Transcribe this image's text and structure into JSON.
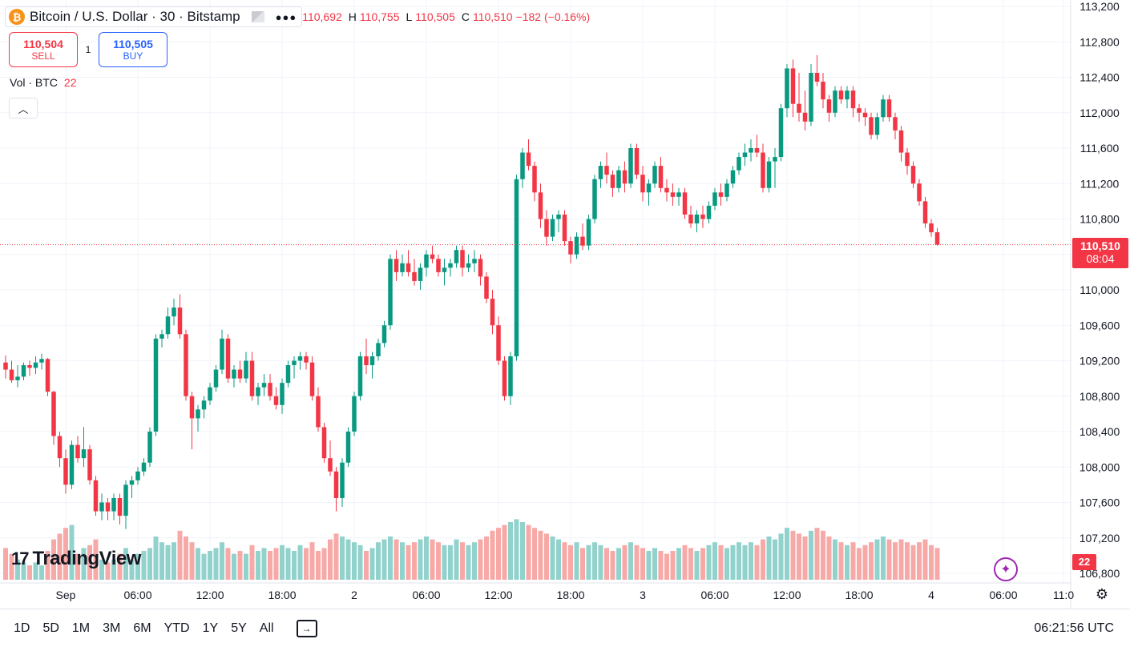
{
  "legend": {
    "symbol": "Bitcoin / U.S. Dollar · 30 · Bitstamp",
    "coin_glyph": "₿",
    "ohlc": {
      "o": "110,692",
      "h": "110,755",
      "l": "110,505",
      "c": "110,510",
      "change": "−182 (−0.16%)"
    },
    "labels": {
      "o": "",
      "h": "H",
      "l": "L",
      "c": "C"
    }
  },
  "trade": {
    "sell_price": "110,504",
    "sell_label": "SELL",
    "spread": "1",
    "buy_price": "110,505",
    "buy_label": "BUY"
  },
  "volume_legend": {
    "label": "Vol · BTC",
    "value": "22"
  },
  "logo": {
    "text": "TradingView"
  },
  "price_tag": {
    "price": "110,510",
    "countdown": "08:04"
  },
  "volume_tag": "22",
  "bottom_bar": {
    "ranges": [
      "1D",
      "5D",
      "1M",
      "3M",
      "6M",
      "YTD",
      "1Y",
      "5Y",
      "All"
    ],
    "clock": "06:21:56 UTC"
  },
  "colors": {
    "up": "#089981",
    "down": "#f23645",
    "vol_up": "#92d2cc",
    "vol_down": "#f7a9a7",
    "grid": "#f0f3fa"
  },
  "chart_data": {
    "type": "candlestick",
    "title": "Bitcoin / U.S. Dollar · 30 · Bitstamp",
    "y_ticks": [
      113200,
      112800,
      112400,
      112000,
      111600,
      111200,
      110800,
      110400,
      110000,
      109600,
      109200,
      108800,
      108400,
      108000,
      107600,
      107200,
      106800
    ],
    "ylim": [
      106700,
      113200
    ],
    "x_ticks": [
      {
        "label": "Sep",
        "index": 10
      },
      {
        "label": "06:00",
        "index": 22
      },
      {
        "label": "12:00",
        "index": 34
      },
      {
        "label": "18:00",
        "index": 46
      },
      {
        "label": "2",
        "index": 58
      },
      {
        "label": "06:00",
        "index": 70
      },
      {
        "label": "12:00",
        "index": 82
      },
      {
        "label": "18:00",
        "index": 94
      },
      {
        "label": "3",
        "index": 106
      },
      {
        "label": "06:00",
        "index": 118
      },
      {
        "label": "12:00",
        "index": 130
      },
      {
        "label": "18:00",
        "index": 142
      },
      {
        "label": "4",
        "index": 154
      },
      {
        "label": "06:00",
        "index": 166
      },
      {
        "label": "11:0",
        "index": 176
      }
    ],
    "last_price": 110510,
    "volume_max": 100,
    "candles": [
      [
        109180,
        109260,
        109000,
        109100,
        22
      ],
      [
        109100,
        109200,
        108950,
        108980,
        18
      ],
      [
        108980,
        109150,
        108900,
        109020,
        14
      ],
      [
        109020,
        109180,
        108980,
        109150,
        12
      ],
      [
        109150,
        109200,
        109030,
        109120,
        10
      ],
      [
        109120,
        109250,
        109050,
        109180,
        12
      ],
      [
        109180,
        109280,
        109100,
        109220,
        10
      ],
      [
        109220,
        109230,
        108800,
        108850,
        20
      ],
      [
        108850,
        108860,
        108250,
        108350,
        28
      ],
      [
        108350,
        108400,
        108000,
        108100,
        32
      ],
      [
        108100,
        108200,
        107700,
        107800,
        36
      ],
      [
        107800,
        108300,
        107750,
        108250,
        38
      ],
      [
        108250,
        108350,
        108050,
        108100,
        18
      ],
      [
        108100,
        108450,
        108000,
        108200,
        22
      ],
      [
        108200,
        108250,
        107800,
        107850,
        24
      ],
      [
        107850,
        107900,
        107450,
        107500,
        28
      ],
      [
        107500,
        107700,
        107400,
        107600,
        14
      ],
      [
        107600,
        107650,
        107400,
        107500,
        12
      ],
      [
        107500,
        107700,
        107400,
        107650,
        14
      ],
      [
        107650,
        107700,
        107350,
        107450,
        18
      ],
      [
        107450,
        107850,
        107300,
        107800,
        22
      ],
      [
        107800,
        107900,
        107650,
        107850,
        14
      ],
      [
        107850,
        108000,
        107800,
        107950,
        18
      ],
      [
        107950,
        108100,
        107900,
        108050,
        20
      ],
      [
        108050,
        108450,
        108000,
        108400,
        22
      ],
      [
        108400,
        109500,
        108350,
        109450,
        30
      ],
      [
        109450,
        109550,
        109350,
        109500,
        26
      ],
      [
        109500,
        109800,
        109450,
        109700,
        24
      ],
      [
        109700,
        109900,
        109600,
        109800,
        26
      ],
      [
        109800,
        109950,
        109450,
        109500,
        34
      ],
      [
        109500,
        109550,
        108750,
        108800,
        30
      ],
      [
        108800,
        108850,
        108200,
        108550,
        26
      ],
      [
        108550,
        108700,
        108400,
        108650,
        22
      ],
      [
        108650,
        108800,
        108550,
        108750,
        18
      ],
      [
        108750,
        108950,
        108700,
        108900,
        20
      ],
      [
        108900,
        109150,
        108850,
        109100,
        22
      ],
      [
        109100,
        109550,
        109050,
        109450,
        26
      ],
      [
        109450,
        109500,
        108950,
        109000,
        22
      ],
      [
        109000,
        109150,
        108900,
        109100,
        18
      ],
      [
        109100,
        109200,
        108950,
        109000,
        20
      ],
      [
        109000,
        109300,
        108950,
        109200,
        18
      ],
      [
        109200,
        109300,
        108750,
        108800,
        24
      ],
      [
        108800,
        108950,
        108700,
        108900,
        20
      ],
      [
        108900,
        109050,
        108800,
        108950,
        22
      ],
      [
        108950,
        109050,
        108750,
        108800,
        20
      ],
      [
        108800,
        108900,
        108650,
        108700,
        22
      ],
      [
        108700,
        109000,
        108600,
        108950,
        24
      ],
      [
        108950,
        109200,
        108900,
        109150,
        22
      ],
      [
        109150,
        109250,
        109000,
        109200,
        20
      ],
      [
        109200,
        109300,
        109100,
        109250,
        24
      ],
      [
        109250,
        109300,
        109100,
        109180,
        22
      ],
      [
        109180,
        109250,
        108750,
        108800,
        26
      ],
      [
        108800,
        108900,
        108400,
        108450,
        20
      ],
      [
        108450,
        108500,
        108050,
        108100,
        22
      ],
      [
        108100,
        108300,
        107900,
        107950,
        28
      ],
      [
        107950,
        108000,
        107500,
        107650,
        32
      ],
      [
        107650,
        108100,
        107550,
        108050,
        30
      ],
      [
        108050,
        108450,
        108000,
        108400,
        28
      ],
      [
        108400,
        108850,
        108350,
        108800,
        26
      ],
      [
        108800,
        109300,
        108750,
        109250,
        24
      ],
      [
        109250,
        109450,
        109050,
        109150,
        20
      ],
      [
        109150,
        109300,
        109000,
        109250,
        22
      ],
      [
        109250,
        109450,
        109200,
        109400,
        26
      ],
      [
        109400,
        109650,
        109350,
        109600,
        28
      ],
      [
        109600,
        110400,
        109550,
        110350,
        30
      ],
      [
        110350,
        110450,
        110100,
        110200,
        28
      ],
      [
        110200,
        110400,
        110150,
        110300,
        26
      ],
      [
        110300,
        110450,
        110150,
        110200,
        24
      ],
      [
        110200,
        110350,
        110050,
        110100,
        26
      ],
      [
        110100,
        110300,
        110000,
        110250,
        28
      ],
      [
        110250,
        110450,
        110150,
        110400,
        30
      ],
      [
        110400,
        110500,
        110300,
        110350,
        28
      ],
      [
        110350,
        110400,
        110150,
        110200,
        26
      ],
      [
        110200,
        110350,
        110050,
        110250,
        24
      ],
      [
        110250,
        110350,
        110150,
        110300,
        24
      ],
      [
        110300,
        110500,
        110250,
        110450,
        28
      ],
      [
        110450,
        110500,
        110150,
        110250,
        26
      ],
      [
        110250,
        110400,
        110200,
        110300,
        24
      ],
      [
        110300,
        110450,
        110200,
        110350,
        26
      ],
      [
        110350,
        110400,
        110050,
        110150,
        28
      ],
      [
        110150,
        110200,
        109850,
        109900,
        30
      ],
      [
        109900,
        110000,
        109500,
        109600,
        34
      ],
      [
        109600,
        109700,
        109150,
        109200,
        36
      ],
      [
        109200,
        109250,
        108750,
        108800,
        38
      ],
      [
        108800,
        109300,
        108700,
        109250,
        40
      ],
      [
        109250,
        111300,
        109200,
        111250,
        42
      ],
      [
        111250,
        111600,
        111150,
        111550,
        40
      ],
      [
        111550,
        111700,
        111350,
        111400,
        38
      ],
      [
        111400,
        111450,
        111000,
        111100,
        36
      ],
      [
        111100,
        111200,
        110700,
        110800,
        34
      ],
      [
        110800,
        110900,
        110500,
        110600,
        32
      ],
      [
        110600,
        110850,
        110550,
        110800,
        30
      ],
      [
        110800,
        110900,
        110650,
        110850,
        28
      ],
      [
        110850,
        110900,
        110500,
        110550,
        26
      ],
      [
        110550,
        110600,
        110300,
        110400,
        24
      ],
      [
        110400,
        110650,
        110350,
        110600,
        26
      ],
      [
        110600,
        110750,
        110450,
        110500,
        22
      ],
      [
        110500,
        110850,
        110450,
        110800,
        24
      ],
      [
        110800,
        111300,
        110750,
        111250,
        26
      ],
      [
        111250,
        111450,
        111150,
        111400,
        24
      ],
      [
        111400,
        111550,
        111200,
        111300,
        22
      ],
      [
        111300,
        111350,
        111050,
        111150,
        20
      ],
      [
        111150,
        111400,
        111100,
        111350,
        22
      ],
      [
        111350,
        111450,
        111100,
        111200,
        24
      ],
      [
        111200,
        111650,
        111150,
        111600,
        26
      ],
      [
        111600,
        111650,
        111250,
        111300,
        24
      ],
      [
        111300,
        111400,
        111000,
        111100,
        22
      ],
      [
        111100,
        111250,
        110950,
        111200,
        20
      ],
      [
        111200,
        111450,
        111150,
        111400,
        22
      ],
      [
        111400,
        111500,
        111100,
        111150,
        20
      ],
      [
        111150,
        111250,
        111000,
        111100,
        18
      ],
      [
        111100,
        111200,
        110950,
        111050,
        20
      ],
      [
        111050,
        111150,
        110950,
        111100,
        22
      ],
      [
        111100,
        111150,
        110800,
        110850,
        24
      ],
      [
        110850,
        110950,
        110700,
        110750,
        22
      ],
      [
        110750,
        110900,
        110650,
        110850,
        20
      ],
      [
        110850,
        110950,
        110700,
        110800,
        22
      ],
      [
        110800,
        111000,
        110750,
        110950,
        24
      ],
      [
        110950,
        111150,
        110900,
        111100,
        26
      ],
      [
        111100,
        111200,
        110950,
        111050,
        24
      ],
      [
        111050,
        111250,
        111000,
        111200,
        22
      ],
      [
        111200,
        111400,
        111150,
        111350,
        24
      ],
      [
        111350,
        111550,
        111300,
        111500,
        26
      ],
      [
        111500,
        111650,
        111400,
        111550,
        24
      ],
      [
        111550,
        111700,
        111450,
        111600,
        26
      ],
      [
        111600,
        111750,
        111500,
        111550,
        24
      ],
      [
        111550,
        111650,
        111100,
        111150,
        28
      ],
      [
        111150,
        111500,
        111100,
        111450,
        30
      ],
      [
        111450,
        111600,
        111150,
        111500,
        28
      ],
      [
        111500,
        112100,
        111450,
        112050,
        32
      ],
      [
        112050,
        112550,
        111950,
        112500,
        36
      ],
      [
        112500,
        112600,
        111950,
        112100,
        34
      ],
      [
        112100,
        112450,
        111900,
        112000,
        32
      ],
      [
        112000,
        112250,
        111800,
        111900,
        30
      ],
      [
        111900,
        112550,
        111850,
        112450,
        34
      ],
      [
        112450,
        112650,
        112300,
        112350,
        36
      ],
      [
        112350,
        112450,
        112050,
        112150,
        34
      ],
      [
        112150,
        112200,
        111900,
        112000,
        30
      ],
      [
        112000,
        112300,
        111950,
        112250,
        28
      ],
      [
        112250,
        112300,
        112100,
        112150,
        26
      ],
      [
        112150,
        112300,
        112050,
        112250,
        24
      ],
      [
        112250,
        112300,
        111950,
        112050,
        26
      ],
      [
        112050,
        112100,
        111900,
        112000,
        22
      ],
      [
        112000,
        112050,
        111850,
        111950,
        24
      ],
      [
        111950,
        112000,
        111700,
        111750,
        26
      ],
      [
        111750,
        112000,
        111700,
        111950,
        28
      ],
      [
        111950,
        112200,
        111900,
        112150,
        30
      ],
      [
        112150,
        112200,
        111900,
        111950,
        28
      ],
      [
        111950,
        112000,
        111700,
        111800,
        26
      ],
      [
        111800,
        111850,
        111450,
        111550,
        28
      ],
      [
        111550,
        111600,
        111300,
        111400,
        26
      ],
      [
        111400,
        111450,
        111150,
        111200,
        24
      ],
      [
        111200,
        111250,
        110950,
        111000,
        26
      ],
      [
        111000,
        111050,
        110700,
        110750,
        28
      ],
      [
        110750,
        110800,
        110600,
        110650,
        24
      ],
      [
        110650,
        110700,
        110500,
        110510,
        22
      ]
    ]
  }
}
